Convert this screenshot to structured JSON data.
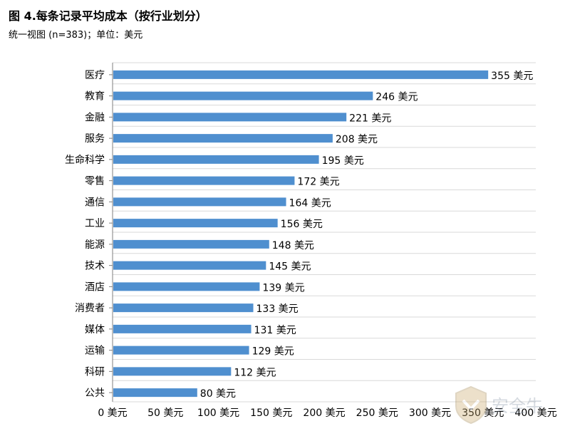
{
  "title": "图 4.每条记录平均成本（按行业划分）",
  "subtitle": "统一视图 (n=383)；单位：美元",
  "watermark": {
    "text": "安全牛"
  },
  "chart_data": {
    "type": "bar",
    "orientation": "horizontal",
    "categories": [
      "医疗",
      "教育",
      "金融",
      "服务",
      "生命科学",
      "零售",
      "通信",
      "工业",
      "能源",
      "技术",
      "酒店",
      "消费者",
      "媒体",
      "运输",
      "科研",
      "公共"
    ],
    "values": [
      355,
      246,
      221,
      208,
      195,
      172,
      164,
      156,
      148,
      145,
      139,
      133,
      131,
      129,
      112,
      80
    ],
    "data_labels": [
      "355 美元",
      "246 美元",
      "221 美元",
      "208 美元",
      "195 美元",
      "172 美元",
      "164 美元",
      "156 美元",
      "148 美元",
      "145 美元",
      "139 美元",
      "133 美元",
      "131 美元",
      "129 美元",
      "112 美元",
      "80 美元"
    ],
    "ticks": [
      0,
      50,
      100,
      150,
      200,
      250,
      300,
      350,
      400
    ],
    "tick_labels": [
      "0 美元",
      "50 美元",
      "100 美元",
      "150 美元",
      "200 美元",
      "250 美元",
      "300 美元",
      "350 美元",
      "400 美元"
    ],
    "xlim": [
      0,
      400
    ],
    "grid": true,
    "bar_color": "#4f8fcf"
  }
}
